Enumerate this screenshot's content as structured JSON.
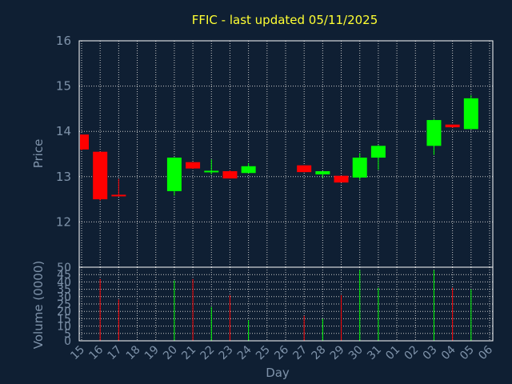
{
  "title": "FFIC - last updated 05/11/2025",
  "colors": {
    "background": "#0f1f33",
    "frame": "#ffffff",
    "grid": "#c8c8c8",
    "text": "#7f93aa",
    "title": "#ffff33",
    "up": "#00ff00",
    "down": "#ff0000"
  },
  "chart_data": [
    {
      "type": "candlestick",
      "title": "FFIC - last updated 05/11/2025",
      "ylabel": "Price",
      "ylim": [
        11,
        16
      ],
      "yticks": [
        12,
        13,
        14,
        15,
        16
      ],
      "grid": true,
      "xlabel": "",
      "categories": [
        "15",
        "16",
        "17",
        "18",
        "19",
        "20",
        "21",
        "22",
        "23",
        "24",
        "25",
        "26",
        "27",
        "28",
        "29",
        "30",
        "31",
        "01",
        "02",
        "03",
        "04",
        "05",
        "06"
      ],
      "candles": [
        {
          "x": "15",
          "open": 13.93,
          "high": 13.93,
          "low": 13.58,
          "close": 13.6
        },
        {
          "x": "16",
          "open": 13.55,
          "high": 13.55,
          "low": 12.47,
          "close": 12.5
        },
        {
          "x": "17",
          "open": 12.6,
          "high": 12.95,
          "low": 12.57,
          "close": 12.57
        },
        {
          "x": "20",
          "open": 12.68,
          "high": 13.43,
          "low": 12.58,
          "close": 13.42
        },
        {
          "x": "21",
          "open": 13.32,
          "high": 13.32,
          "low": 13.17,
          "close": 13.18
        },
        {
          "x": "22",
          "open": 13.12,
          "high": 13.38,
          "low": 13.05,
          "close": 13.13
        },
        {
          "x": "23",
          "open": 13.12,
          "high": 13.14,
          "low": 12.96,
          "close": 12.96
        },
        {
          "x": "24",
          "open": 13.08,
          "high": 13.3,
          "low": 13.08,
          "close": 13.23
        },
        {
          "x": "27",
          "open": 13.25,
          "high": 13.25,
          "low": 13.1,
          "close": 13.1
        },
        {
          "x": "28",
          "open": 13.05,
          "high": 13.12,
          "low": 12.98,
          "close": 13.12
        },
        {
          "x": "29",
          "open": 13.02,
          "high": 13.02,
          "low": 12.87,
          "close": 12.87
        },
        {
          "x": "30",
          "open": 12.98,
          "high": 13.52,
          "low": 12.93,
          "close": 13.42
        },
        {
          "x": "31",
          "open": 13.42,
          "high": 13.7,
          "low": 13.15,
          "close": 13.68
        },
        {
          "x": "03",
          "open": 13.68,
          "high": 14.27,
          "low": 13.48,
          "close": 14.25
        },
        {
          "x": "04",
          "open": 14.15,
          "high": 14.15,
          "low": 14.08,
          "close": 14.09
        },
        {
          "x": "05",
          "open": 14.05,
          "high": 14.8,
          "low": 14.05,
          "close": 14.73
        }
      ]
    },
    {
      "type": "bar",
      "title": "",
      "ylabel": "Volume (0000)",
      "xlabel": "Day",
      "ylim": [
        0,
        50
      ],
      "yticks": [
        0,
        5,
        10,
        15,
        20,
        25,
        30,
        35,
        40,
        45,
        50
      ],
      "grid": true,
      "categories": [
        "15",
        "16",
        "17",
        "18",
        "19",
        "20",
        "21",
        "22",
        "23",
        "24",
        "25",
        "26",
        "27",
        "28",
        "29",
        "30",
        "31",
        "01",
        "02",
        "03",
        "04",
        "05",
        "06"
      ],
      "bars": [
        {
          "x": "16",
          "value": 42,
          "direction": "down"
        },
        {
          "x": "17",
          "value": 28,
          "direction": "down"
        },
        {
          "x": "20",
          "value": 41,
          "direction": "up"
        },
        {
          "x": "21",
          "value": 42,
          "direction": "down"
        },
        {
          "x": "22",
          "value": 23,
          "direction": "up"
        },
        {
          "x": "23",
          "value": 31,
          "direction": "down"
        },
        {
          "x": "24",
          "value": 14,
          "direction": "up"
        },
        {
          "x": "27",
          "value": 17,
          "direction": "down"
        },
        {
          "x": "28",
          "value": 15,
          "direction": "up"
        },
        {
          "x": "29",
          "value": 31,
          "direction": "down"
        },
        {
          "x": "30",
          "value": 48,
          "direction": "up"
        },
        {
          "x": "31",
          "value": 36,
          "direction": "up"
        },
        {
          "x": "03",
          "value": 48,
          "direction": "up"
        },
        {
          "x": "04",
          "value": 36,
          "direction": "down"
        },
        {
          "x": "05",
          "value": 35,
          "direction": "up"
        }
      ]
    }
  ]
}
